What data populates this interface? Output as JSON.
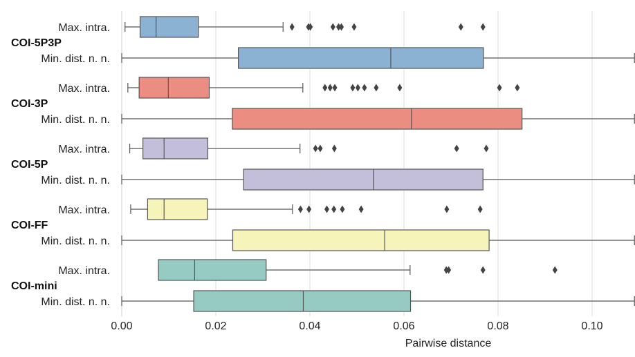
{
  "chart_data": {
    "type": "boxplot",
    "orientation": "horizontal",
    "xlabel": "Pairwise distance",
    "xlim": [
      0.0,
      0.109
    ],
    "xticks": [
      "0.00",
      "0.02",
      "0.04",
      "0.06",
      "0.08",
      "0.10"
    ],
    "xtick_values": [
      0.0,
      0.02,
      0.04,
      0.06,
      0.08,
      0.1
    ],
    "grid": "vertical",
    "groups": [
      {
        "name": "COI-5P3P",
        "color": "#8bb2d2",
        "boxes": [
          {
            "label": "Max. intra.",
            "whisker_low": 0.0007,
            "q1": 0.0039,
            "median": 0.0073,
            "q3": 0.0163,
            "whisker_high": 0.0343,
            "outliers": [
              0.0362,
              0.0397,
              0.0401,
              0.0449,
              0.0461,
              0.0467,
              0.0494,
              0.0721,
              0.0768
            ]
          },
          {
            "label": "Min. dist. n. n.",
            "whisker_low": 0.0,
            "q1": 0.0248,
            "median": 0.0572,
            "q3": 0.0769,
            "whisker_high": 0.109,
            "outliers": []
          }
        ]
      },
      {
        "name": "COI-3P",
        "color": "#ec8d82",
        "boxes": [
          {
            "label": "Max. intra.",
            "whisker_low": 0.0013,
            "q1": 0.0037,
            "median": 0.0099,
            "q3": 0.0186,
            "whisker_high": 0.0385,
            "outliers": [
              0.0432,
              0.0443,
              0.0453,
              0.0491,
              0.0502,
              0.0516,
              0.0541,
              0.0591,
              0.0803,
              0.0841
            ]
          },
          {
            "label": "Min. dist. n. n.",
            "whisker_low": 0.0,
            "q1": 0.0235,
            "median": 0.0616,
            "q3": 0.0851,
            "whisker_high": 0.109,
            "outliers": []
          }
        ]
      },
      {
        "name": "COI-5P",
        "color": "#c3bfdb",
        "boxes": [
          {
            "label": "Max. intra.",
            "whisker_low": 0.0017,
            "q1": 0.0045,
            "median": 0.009,
            "q3": 0.0183,
            "whisker_high": 0.0379,
            "outliers": [
              0.0412,
              0.0422,
              0.0452,
              0.0712,
              0.0775
            ]
          },
          {
            "label": "Min. dist. n. n.",
            "whisker_low": 0.0,
            "q1": 0.0259,
            "median": 0.0535,
            "q3": 0.0768,
            "whisker_high": 0.109,
            "outliers": []
          }
        ]
      },
      {
        "name": "COI-FF",
        "color": "#f6f4b8",
        "boxes": [
          {
            "label": "Max. intra.",
            "whisker_low": 0.0019,
            "q1": 0.0055,
            "median": 0.009,
            "q3": 0.0182,
            "whisker_high": 0.0363,
            "outliers": [
              0.038,
              0.0398,
              0.0436,
              0.0451,
              0.0469,
              0.0509,
              0.0691,
              0.0762
            ]
          },
          {
            "label": "Min. dist. n. n.",
            "whisker_low": 0.0,
            "q1": 0.0236,
            "median": 0.0559,
            "q3": 0.0781,
            "whisker_high": 0.109,
            "outliers": []
          }
        ]
      },
      {
        "name": "COI-mini",
        "color": "#95cbc2",
        "boxes": [
          {
            "label": "Max. intra.",
            "whisker_low": 0.0078,
            "q1": 0.0078,
            "median": 0.0155,
            "q3": 0.0307,
            "whisker_high": 0.0613,
            "outliers": [
              0.069,
              0.0695,
              0.0768,
              0.0921
            ]
          },
          {
            "label": "Min. dist. n. n.",
            "whisker_low": 0.0,
            "q1": 0.0153,
            "median": 0.0386,
            "q3": 0.0614,
            "whisker_high": 0.109,
            "outliers": []
          }
        ]
      }
    ]
  }
}
